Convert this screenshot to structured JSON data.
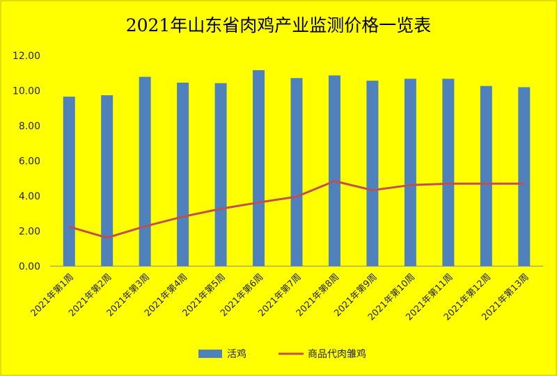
{
  "chart_data": {
    "type": "bar",
    "title": "2021年山东省肉鸡产业监测价格一览表",
    "categories": [
      "2021年第1周",
      "2021年第2周",
      "2021年第3周",
      "2021年第4周",
      "2021年第5周",
      "2021年第6周",
      "2021年第7周",
      "2021年第8周",
      "2021年第9周",
      "2021年第10周",
      "2021年第11周",
      "2021年第12周",
      "2021年第13周"
    ],
    "series": [
      {
        "name": "活鸡",
        "type": "bar",
        "color": "#4f81bd",
        "values": [
          9.66,
          9.74,
          10.79,
          10.46,
          10.43,
          11.17,
          10.72,
          10.87,
          10.57,
          10.68,
          10.68,
          10.27,
          10.2
        ]
      },
      {
        "name": "商品代肉雏鸡",
        "type": "line",
        "color": "#c0504d",
        "values": [
          2.25,
          1.62,
          2.27,
          2.82,
          3.27,
          3.63,
          3.96,
          4.85,
          4.33,
          4.62,
          4.7,
          4.7,
          4.7
        ]
      }
    ],
    "yticks": [
      "0.00",
      "2.00",
      "4.00",
      "6.00",
      "8.00",
      "10.00",
      "12.00"
    ],
    "ylim": [
      0,
      12
    ],
    "xlabel": "",
    "ylabel": "",
    "legend_position": "bottom",
    "grid": false,
    "background": "#ffff00"
  }
}
